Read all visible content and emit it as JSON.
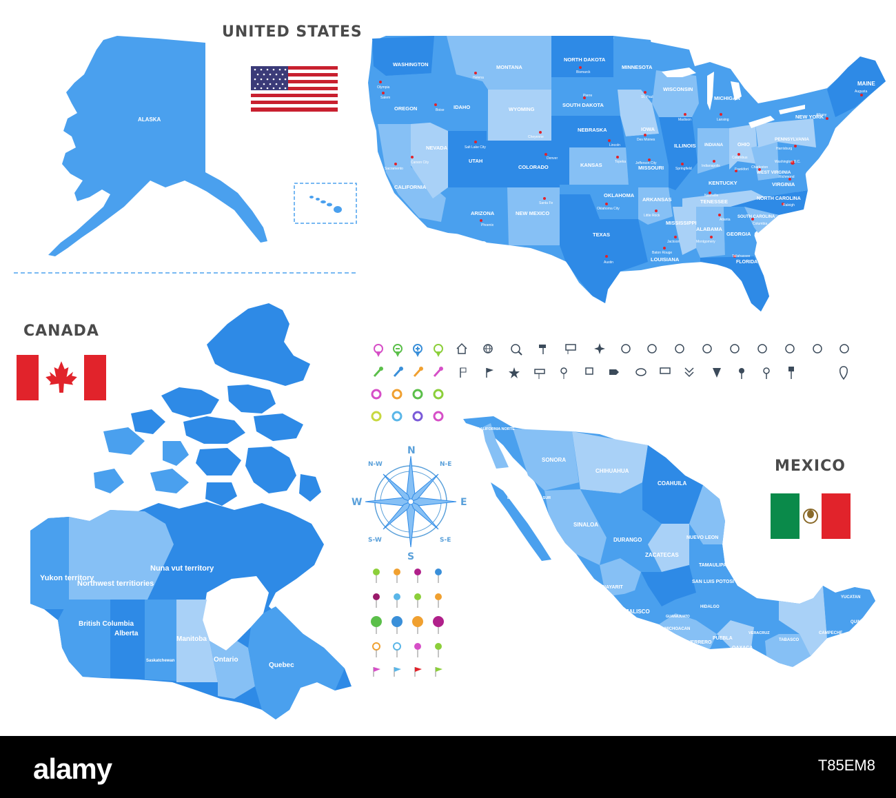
{
  "titles": {
    "usa": "UNITED STATES",
    "canada": "CANADA",
    "mexico": "MEXICO"
  },
  "colors": {
    "region_dark": "#2e8ae6",
    "region_mid": "#4aa0ee",
    "region_light": "#86c0f5",
    "region_pale": "#a9d1f7",
    "capital_dot": "#e1232b",
    "title_text": "#4a4a4a"
  },
  "usa": {
    "alaska_label": "ALASKA",
    "states": [
      {
        "name": "WASHINGTON",
        "capital": "Olympia"
      },
      {
        "name": "OREGON",
        "capital": "Salem"
      },
      {
        "name": "CALIFORNIA",
        "capital": "Sacramento"
      },
      {
        "name": "NEVADA",
        "capital": "Carson City"
      },
      {
        "name": "IDAHO",
        "capital": "Boise"
      },
      {
        "name": "MONTANA",
        "capital": "Helena"
      },
      {
        "name": "WYOMING",
        "capital": "Cheyenne"
      },
      {
        "name": "UTAH",
        "capital": "Salt Lake City"
      },
      {
        "name": "ARIZONA",
        "capital": "Phoenix"
      },
      {
        "name": "COLORADO",
        "capital": "Denver"
      },
      {
        "name": "NEW MEXICO",
        "capital": "Santa Fe"
      },
      {
        "name": "NORTH DAKOTA",
        "capital": "Bismarck"
      },
      {
        "name": "SOUTH DAKOTA",
        "capital": "Pierre"
      },
      {
        "name": "NEBRASKA",
        "capital": "Lincoln"
      },
      {
        "name": "KANSAS",
        "capital": "Topeka"
      },
      {
        "name": "OKLAHOMA",
        "capital": "Oklahoma City"
      },
      {
        "name": "TEXAS",
        "capital": "Austin"
      },
      {
        "name": "MINNESOTA",
        "capital": "St. Paul"
      },
      {
        "name": "IOWA",
        "capital": "Des Moines"
      },
      {
        "name": "MISSOURI",
        "capital": "Jefferson City"
      },
      {
        "name": "ARKANSAS",
        "capital": "Little Rock"
      },
      {
        "name": "LOUISIANA",
        "capital": "Baton Rouge"
      },
      {
        "name": "WISCONSIN",
        "capital": "Madison"
      },
      {
        "name": "ILLINOIS",
        "capital": "Springfield"
      },
      {
        "name": "MISSISSIPPI",
        "capital": "Jackson"
      },
      {
        "name": "MICHIGAN",
        "capital": "Lansing"
      },
      {
        "name": "INDIANA",
        "capital": "Indianapolis"
      },
      {
        "name": "KENTUCKY",
        "capital": "Frankfort"
      },
      {
        "name": "TENESSEE",
        "capital": "Nashville"
      },
      {
        "name": "ALABAMA",
        "capital": "Montgomery"
      },
      {
        "name": "GEORGIA",
        "capital": "Atlanta"
      },
      {
        "name": "FLORIDA",
        "capital": "Tallahassee"
      },
      {
        "name": "OHIO",
        "capital": "Columbus"
      },
      {
        "name": "WEST VIRGINIA",
        "capital": "Charleston"
      },
      {
        "name": "VIRGINIA",
        "capital": "Richmond"
      },
      {
        "name": "NORTH CAROLINA",
        "capital": "Raleigh"
      },
      {
        "name": "SOUTH CAROLINA",
        "capital": "Columbia"
      },
      {
        "name": "PENNSYLVANIA",
        "capital": "Harrisburg"
      },
      {
        "name": "NEW YORK",
        "capital": "Albany"
      },
      {
        "name": "MAINE",
        "capital": "Augusta"
      }
    ],
    "extra_capitals": [
      "Washington D.C."
    ]
  },
  "canada": {
    "provinces": [
      "Yukon territory",
      "Northwest territiories",
      "Nuna vut territory",
      "British Columbia",
      "Alberta",
      "Saskatchewan",
      "Manitoba",
      "Ontario",
      "Quebec"
    ]
  },
  "mexico": {
    "states": [
      "BAJA CALIFORNIA NORTE",
      "BAJA CALIFORNIA SUR",
      "SONORA",
      "CHIHUAHUA",
      "COAHUILA",
      "SINALOA",
      "DURANGO",
      "NUEVO LEON",
      "ZACATECAS",
      "TAMAULIPAS",
      "NAYARIT",
      "SAN LUIS POTOSI",
      "JALISCO",
      "GUANAJUATO",
      "HIDALGO",
      "MICHOACAN",
      "GUERRERO",
      "PUEBLA",
      "VERACRUZ",
      "OAXACA",
      "TABASCO",
      "CHIAPAS",
      "CAMPECHE",
      "YUCATAN",
      "QUINTANA ROO"
    ]
  },
  "compass": {
    "N": "N",
    "NE": "N-E",
    "E": "E",
    "SE": "S-E",
    "S": "S",
    "SW": "S-W",
    "W": "W",
    "NW": "N-W"
  },
  "icons": {
    "row1": [
      "pin-magenta-icon",
      "pin-green-minus-icon",
      "pin-blue-plus-icon",
      "pin-green-icon",
      "home-icon",
      "globe-icon",
      "globe-search-icon",
      "signpost-icon",
      "sign-board-icon",
      "compass-rose-icon",
      "compass-dial-icon",
      "compass-dial-icon",
      "compass-dial-icon",
      "compass-dial-icon",
      "compass-dial-icon",
      "compass-dial-icon",
      "compass-dial-icon",
      "compass-dial-icon",
      "compass-dial-icon"
    ],
    "row2": [
      "pushpin-green-icon",
      "pushpin-blue-icon",
      "pushpin-orange-icon",
      "pushpin-magenta-icon",
      "flag-icon",
      "flag-wave-icon",
      "star-pin-icon",
      "direction-sign-icon",
      "location-pin-icon",
      "sign-icon",
      "arrow-sign-icon",
      "speech-bubble-icon",
      "billboard-icon",
      "chevrons-down-icon",
      "arrowhead-down-icon",
      "pin-solid-icon",
      "pin-outline-icon",
      "pushpin-icon",
      "map-marker-icon"
    ]
  },
  "watermark": {
    "brand": "alamy",
    "image_id": "T85EM8"
  }
}
